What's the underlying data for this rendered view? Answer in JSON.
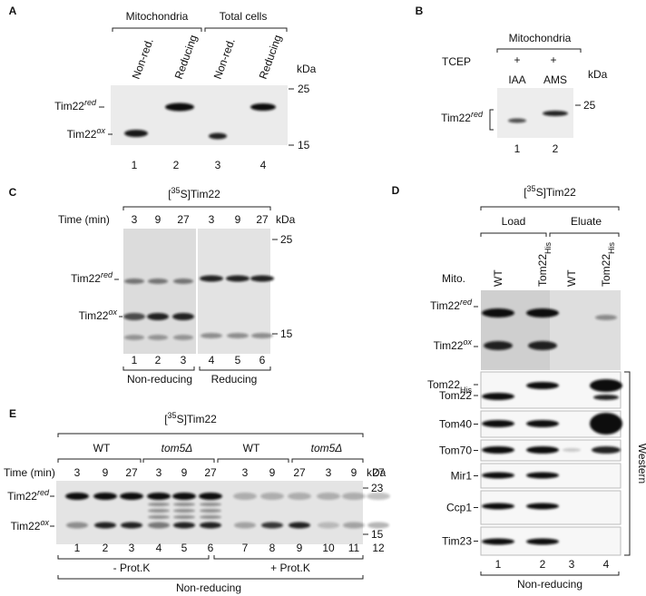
{
  "A": {
    "label": "A",
    "groups": [
      "Mitochondria",
      "Total cells"
    ],
    "lanes": [
      "Non-red.",
      "Reducing",
      "Non-red.",
      "Reducing"
    ],
    "unit": "kDa",
    "markers": [
      "25",
      "15"
    ],
    "bands": [
      {
        "base": "Tim22",
        "sup": "red"
      },
      {
        "base": "Tim22",
        "sup": "ox"
      }
    ],
    "lane_numbers": [
      "1",
      "2",
      "3",
      "4"
    ]
  },
  "B": {
    "label": "B",
    "group": "Mitochondria",
    "row_label": "TCEP",
    "treatment": [
      "+",
      "+"
    ],
    "reagents": [
      "IAA",
      "AMS"
    ],
    "unit": "kDa",
    "markers": [
      "25"
    ],
    "bands": [
      {
        "base": "Tim22",
        "sup": "red"
      }
    ],
    "lane_numbers": [
      "1",
      "2"
    ]
  },
  "C": {
    "label": "C",
    "title": {
      "pre": "[",
      "sup": "35",
      "post": "S]Tim22"
    },
    "time_label": "Time (min)",
    "times": [
      "3",
      "9",
      "27",
      "3",
      "9",
      "27"
    ],
    "unit": "kDa",
    "markers": [
      "25",
      "15"
    ],
    "bands": [
      {
        "base": "Tim22",
        "sup": "red"
      },
      {
        "base": "Tim22",
        "sup": "ox"
      }
    ],
    "lane_numbers": [
      "1",
      "2",
      "3",
      "4",
      "5",
      "6"
    ],
    "conditions": [
      "Non-reducing",
      "Reducing"
    ]
  },
  "D": {
    "label": "D",
    "title": {
      "pre": "[",
      "sup": "35",
      "post": "S]Tim22"
    },
    "groups": [
      "Load",
      "Eluate"
    ],
    "row_label": "Mito.",
    "lanes": [
      {
        "base": "WT"
      },
      {
        "base": "Tom22",
        "sub": "His"
      },
      {
        "base": "WT"
      },
      {
        "base": "Tom22",
        "sub": "His"
      }
    ],
    "bands": [
      {
        "base": "Tim22",
        "sup": "red"
      },
      {
        "base": "Tim22",
        "sup": "ox"
      }
    ],
    "western": [
      [
        {
          "base": "Tom22",
          "sub": "His"
        },
        {
          "base": "Tom22"
        }
      ],
      [
        {
          "base": "Tom40"
        }
      ],
      [
        {
          "base": "Tom70"
        }
      ],
      [
        {
          "base": "Mir1"
        }
      ],
      [
        {
          "base": "Ccp1"
        }
      ],
      [
        {
          "base": "Tim23"
        }
      ]
    ],
    "western_label": "Western",
    "lane_numbers": [
      "1",
      "2",
      "3",
      "4"
    ],
    "condition": "Non-reducing"
  },
  "E": {
    "label": "E",
    "title": {
      "pre": "[",
      "sup": "35",
      "post": "S]Tim22"
    },
    "genotypes": [
      "WT",
      "tom5Δ",
      "WT",
      "tom5Δ"
    ],
    "time_label": "Time (min)",
    "times": [
      "3",
      "9",
      "27",
      "3",
      "9",
      "27",
      "3",
      "9",
      "27",
      "3",
      "9",
      "27"
    ],
    "unit": "kDa",
    "markers": [
      "23",
      "15"
    ],
    "bands": [
      {
        "base": "Tim22",
        "sup": "red"
      },
      {
        "base": "Tim22",
        "sup": "ox"
      }
    ],
    "lane_numbers": [
      "1",
      "2",
      "3",
      "4",
      "5",
      "6",
      "7",
      "8",
      "9",
      "10",
      "11",
      "12"
    ],
    "treatments": [
      "- Prot.K",
      "+ Prot.K"
    ],
    "condition": "Non-reducing"
  }
}
